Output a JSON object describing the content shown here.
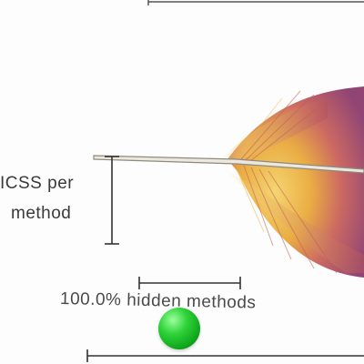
{
  "labels": {
    "per_method_line1": "ICSS per",
    "per_method_line2": "method",
    "hidden_methods": "100.0% hidden methods"
  },
  "colors": {
    "ink": "#3a3a3a",
    "feather_gold": "#e9a93a",
    "feather_red": "#b4535e",
    "feather_purple": "#8a3b6e",
    "dot_green": "#19c02a"
  },
  "marker": {
    "shape": "sphere",
    "color": "#19c02a"
  }
}
